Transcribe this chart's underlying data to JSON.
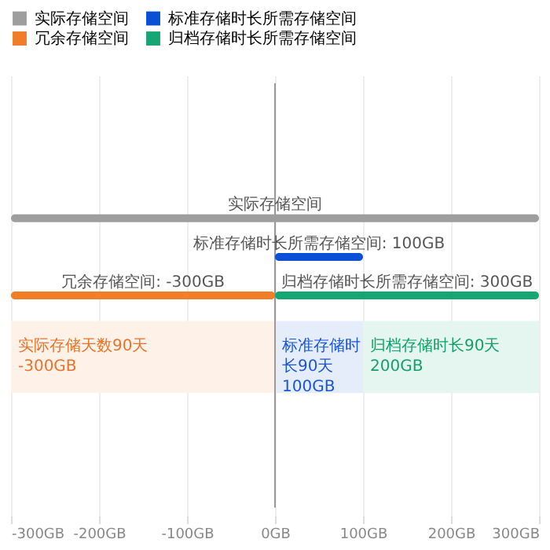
{
  "chart_data": {
    "type": "bar",
    "orientation": "horizontal",
    "categories": [
      null,
      null,
      null,
      null,
      null,
      null,
      null,
      null,
      null,
      null,
      null
    ],
    "series": [
      {
        "name": "实际存储空间",
        "color": "#9e9e9e",
        "base": [
          null,
          null,
          null,
          -300,
          null,
          null,
          null,
          null,
          null,
          null,
          null
        ],
        "values": [
          null,
          null,
          null,
          600,
          null,
          null,
          null,
          null,
          null,
          null,
          null
        ],
        "value_labels": [
          null,
          null,
          null,
          "实际存储空间",
          null,
          null,
          null,
          null,
          null,
          null,
          null
        ]
      },
      {
        "name": "标准存储时长所需存储空间",
        "color": "#0b4fd6",
        "base": [
          null,
          null,
          null,
          null,
          0,
          null,
          null,
          null,
          null,
          null,
          null
        ],
        "values": [
          null,
          null,
          null,
          null,
          100,
          null,
          null,
          null,
          null,
          null,
          null
        ],
        "value_labels": [
          null,
          null,
          null,
          null,
          "标准存储时长所需存储空间: 100GB",
          null,
          null,
          null,
          null,
          null,
          null
        ]
      },
      {
        "name": "冗余存储空间",
        "color": "#f07d27",
        "values": [
          null,
          null,
          null,
          null,
          null,
          -300,
          null,
          null,
          null,
          null,
          null
        ],
        "value_labels": [
          null,
          null,
          null,
          null,
          null,
          "冗余存储空间: -300GB",
          null,
          null,
          null,
          null,
          null
        ]
      },
      {
        "name": "归档存储时长所需存储空间",
        "color": "#16a673",
        "values": [
          null,
          null,
          null,
          null,
          null,
          300,
          null,
          null,
          null,
          null,
          null
        ],
        "value_labels": [
          null,
          null,
          null,
          null,
          null,
          "归档存储时长所需存储空间: 300GB",
          null,
          null,
          null,
          null,
          null
        ]
      }
    ],
    "bands": [
      {
        "axis": "x",
        "from": -300,
        "to": 0,
        "label": "实际存储天数90天\n-300GB",
        "color": "#fdf1e8"
      },
      {
        "axis": "x",
        "from": 0,
        "to": 100,
        "label": "标准存储时长90天\n100GB",
        "color": "#e5edfb"
      },
      {
        "axis": "x",
        "from": 100,
        "to": 300,
        "label": "归档存储时长90天\n200GB",
        "color": "#e4f6ef"
      }
    ],
    "ref_lines": [
      {
        "axis": "x",
        "value": 0,
        "color": "#9a9a9a"
      }
    ],
    "xlim": [
      -300,
      300
    ],
    "xticks": [
      {
        "value": -300,
        "label": "-300GB"
      },
      {
        "value": -200,
        "label": "-200GB"
      },
      {
        "value": -100,
        "label": "-100GB"
      },
      {
        "value": 0,
        "label": "0GB"
      },
      {
        "value": 100,
        "label": "100GB"
      },
      {
        "value": 200,
        "label": "200GB"
      },
      {
        "value": 300,
        "label": "300GB"
      }
    ],
    "grid": "x",
    "legend": "top left"
  }
}
